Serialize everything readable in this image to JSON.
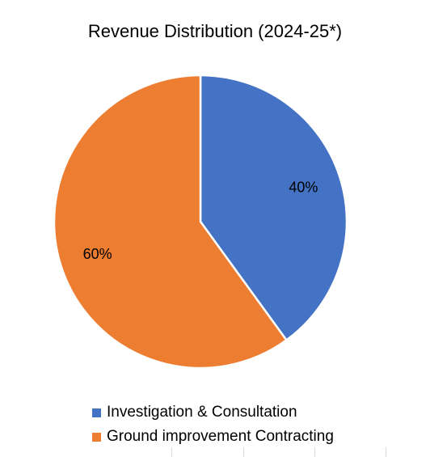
{
  "chart_data": {
    "type": "pie",
    "title": "Revenue Distribution (2024-25*)",
    "categories": [
      "Investigation & Consultation",
      "Ground improvement Contracting"
    ],
    "values": [
      40,
      60
    ],
    "data_labels": [
      "40%",
      "60%"
    ],
    "colors": [
      "#4472C4",
      "#ED7D31"
    ],
    "legend_position": "bottom",
    "slice_border_color": "#ffffff"
  }
}
